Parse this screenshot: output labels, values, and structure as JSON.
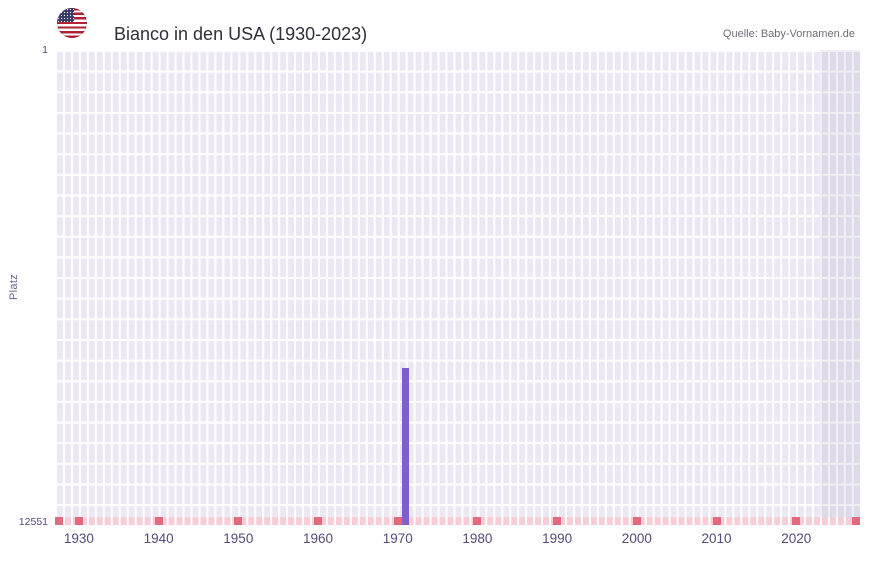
{
  "header": {
    "title": "Bianco in den USA (1930-2023)",
    "source": "Quelle: Baby-Vornamen.de",
    "flag_icon": "us-flag-icon"
  },
  "chart_data": {
    "type": "bar",
    "title": "Bianco in den USA (1930-2023)",
    "xlabel": "",
    "ylabel": "Platz",
    "y_axis": {
      "min": 1,
      "max": 12551,
      "min_label": "1",
      "max_label": "12551",
      "inverted": true
    },
    "x_axis": {
      "start_year": 1927,
      "end_year": 2028,
      "ticks": [
        "1930",
        "1940",
        "1950",
        "1960",
        "1970",
        "1980",
        "1990",
        "2000",
        "2010",
        "2020"
      ]
    },
    "bars": [
      {
        "year": 1971,
        "rank": 8400
      }
    ],
    "shaded_region": {
      "from_year": 2023,
      "to_year": 2028,
      "meaning": "no-data-region"
    },
    "bottom_marks_years": [
      1927,
      1930,
      1940,
      1950,
      1960,
      1970,
      1980,
      1990,
      2000,
      2010,
      2020,
      2028
    ],
    "grid": true,
    "legend": "none",
    "colors": {
      "bar": "#7e61c6",
      "plot_background": "#ebe8f4",
      "grid_line": "#ffffff",
      "shaded_region": "rgba(104,94,150,0.10)",
      "unranked_band": "#f8cdd7",
      "tick_mark": "#e26a7e",
      "axis_text": "#55497b"
    }
  }
}
